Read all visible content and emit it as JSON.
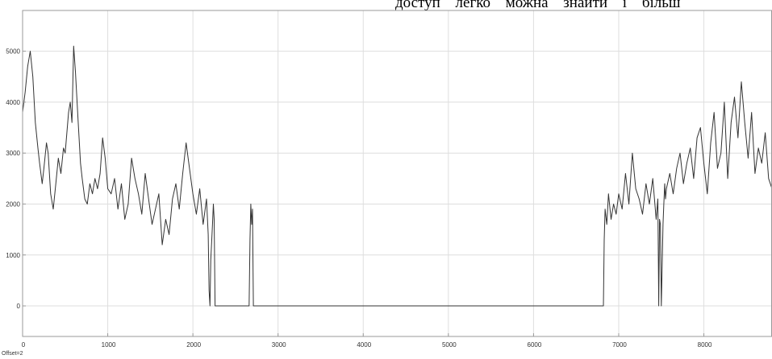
{
  "page": {
    "header_text": "доступ легко можна знайти і більш",
    "offset_label": "Offset=2"
  },
  "colors": {
    "background": "#ffffff",
    "plot_background": "#ffffff",
    "grid": "#dedede",
    "axis": "#9a9a9a",
    "line": "#333333"
  },
  "chart_data": {
    "type": "line",
    "title": "",
    "xlabel": "",
    "ylabel": "",
    "grid": true,
    "xlim": [
      0,
      8800
    ],
    "ylim": [
      -600,
      5800
    ],
    "xticks": [
      0,
      1000,
      2000,
      3000,
      4000,
      5000,
      6000,
      7000,
      8000
    ],
    "yticks": [
      0,
      1000,
      2000,
      3000,
      4000,
      5000
    ],
    "series": [
      {
        "x": [
          0,
          30,
          60,
          90,
          120,
          150,
          180,
          200,
          230,
          250,
          280,
          300,
          330,
          360,
          390,
          420,
          450,
          480,
          500,
          520,
          540,
          560,
          580,
          600,
          620,
          650,
          680,
          700,
          730,
          760,
          790,
          820,
          850,
          880,
          910,
          940,
          970,
          1000,
          1040,
          1080,
          1120,
          1160,
          1200,
          1240,
          1280,
          1320,
          1360,
          1400,
          1440,
          1480,
          1520,
          1560,
          1600,
          1640,
          1680,
          1720,
          1760,
          1800,
          1840,
          1880,
          1920,
          1960,
          2000,
          2040,
          2080,
          2120,
          2160,
          2180,
          2190,
          2200,
          2210,
          2230,
          2240,
          2250,
          2260,
          2660,
          2670,
          2680,
          2690,
          2700,
          2710,
          6820,
          6830,
          6840,
          6860,
          6880,
          6910,
          6940,
          6970,
          7000,
          7040,
          7080,
          7120,
          7160,
          7200,
          7240,
          7280,
          7320,
          7360,
          7400,
          7440,
          7460,
          7470,
          7480,
          7490,
          7500,
          7520,
          7530,
          7540,
          7550,
          7560,
          7600,
          7640,
          7680,
          7720,
          7760,
          7800,
          7840,
          7880,
          7920,
          7960,
          8000,
          8040,
          8080,
          8120,
          8160,
          8200,
          8240,
          8280,
          8320,
          8360,
          8400,
          8440,
          8480,
          8520,
          8560,
          8600,
          8640,
          8680,
          8720,
          8760,
          8800
        ],
        "y": [
          3800,
          4200,
          4700,
          5000,
          4500,
          3600,
          3100,
          2800,
          2400,
          2700,
          3200,
          3000,
          2200,
          1900,
          2400,
          2900,
          2600,
          3100,
          3000,
          3400,
          3800,
          4000,
          3600,
          5100,
          4600,
          3700,
          2800,
          2500,
          2100,
          2000,
          2400,
          2200,
          2500,
          2300,
          2600,
          3300,
          2900,
          2300,
          2200,
          2500,
          1900,
          2400,
          1700,
          2000,
          2900,
          2500,
          2200,
          1800,
          2600,
          2100,
          1600,
          1900,
          2200,
          1200,
          1700,
          1400,
          2100,
          2400,
          1900,
          2600,
          3200,
          2700,
          2200,
          1800,
          2300,
          1600,
          2100,
          1400,
          300,
          0,
          900,
          1600,
          2000,
          1700,
          0,
          0,
          1300,
          2000,
          1600,
          1900,
          0,
          0,
          1300,
          1900,
          1600,
          2200,
          1700,
          2000,
          1800,
          2200,
          1900,
          2600,
          2000,
          3000,
          2300,
          2100,
          1800,
          2400,
          2000,
          2500,
          1700,
          2100,
          0,
          1700,
          1600,
          0,
          1600,
          2000,
          2400,
          2100,
          2300,
          2600,
          2200,
          2700,
          3000,
          2400,
          2800,
          3100,
          2500,
          3300,
          3500,
          2800,
          2200,
          3200,
          3800,
          2700,
          3000,
          4000,
          2500,
          3600,
          4100,
          3300,
          4400,
          3600,
          2900,
          3800,
          2600,
          3100,
          2800,
          3400,
          2500,
          2300
        ]
      }
    ]
  }
}
